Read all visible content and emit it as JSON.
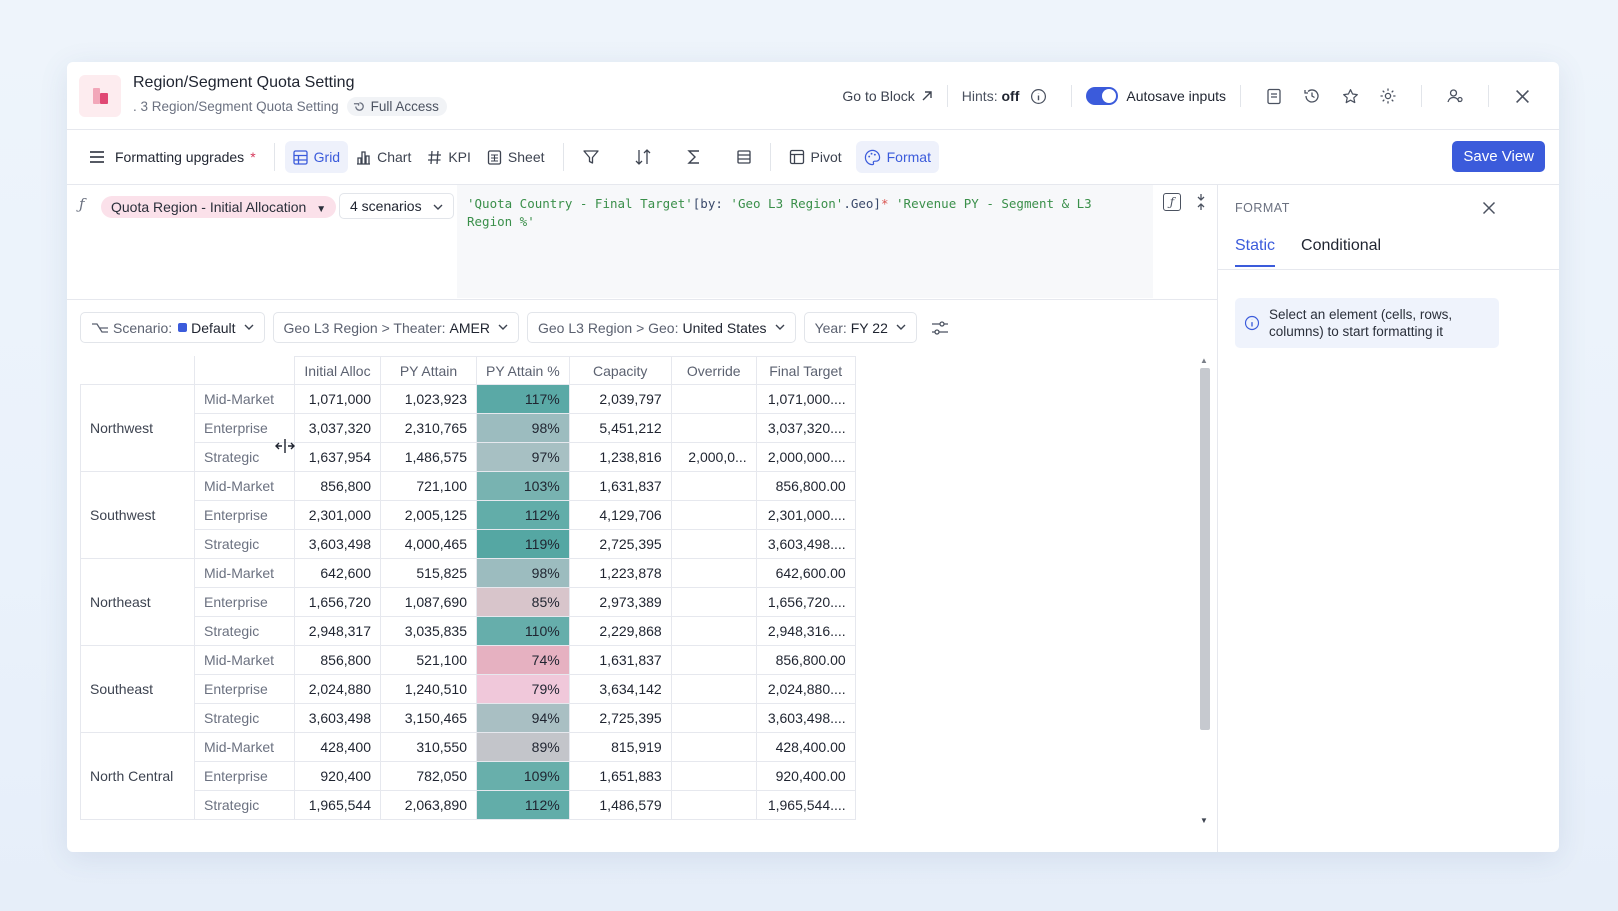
{
  "header": {
    "title": "Region/Segment Quota Setting",
    "subtitle": ". 3 Region/Segment Quota Setting",
    "access": "Full Access",
    "go_to_block": "Go to Block",
    "hints_label": "Hints:",
    "hints_value": "off",
    "autosave": "Autosave inputs"
  },
  "toolbar": {
    "view_name": "Formatting upgrades",
    "asterisk": "*",
    "tabs": [
      "Grid",
      "Chart",
      "KPI",
      "Sheet"
    ],
    "pivot": "Pivot",
    "format": "Format",
    "save": "Save View"
  },
  "formula": {
    "metric": "Quota Region - Initial Allocation",
    "scenarios": "4 scenarios",
    "p1": "'Quota Country - Final Target'",
    "p2": "[by: ",
    "p3": "'Geo L3 Region'",
    "p4": ".Geo]",
    "p5": "* ",
    "p6": "'Revenue PY - Segment & L3 Region %'"
  },
  "filters": {
    "scenario_label": "Scenario:",
    "scenario_value": "Default",
    "theater_label": "Geo L3 Region > Theater:",
    "theater_value": "AMER",
    "geo_label": "Geo L3 Region > Geo:",
    "geo_value": "United States",
    "year_label": "Year:",
    "year_value": "FY 22"
  },
  "grid": {
    "columns": [
      "Initial Alloc",
      "PY Attain",
      "PY Attain %",
      "Capacity",
      "Override",
      "Final Target"
    ],
    "regions": [
      {
        "name": "Northwest",
        "rows": [
          {
            "seg": "Mid-Market",
            "v": [
              "1,071,000",
              "1,023,923",
              "117%",
              "2,039,797",
              "",
              "1,071,000...."
            ],
            "color": "#5aa9a6"
          },
          {
            "seg": "Enterprise",
            "v": [
              "3,037,320",
              "2,310,765",
              "98%",
              "5,451,212",
              "",
              "3,037,320...."
            ],
            "color": "#9cbcbf"
          },
          {
            "seg": "Strategic",
            "v": [
              "1,637,954",
              "1,486,575",
              "97%",
              "1,238,816",
              "2,000,0...",
              "2,000,000...."
            ],
            "color": "#a7c0c3"
          }
        ]
      },
      {
        "name": "Southwest",
        "rows": [
          {
            "seg": "Mid-Market",
            "v": [
              "856,800",
              "721,100",
              "103%",
              "1,631,837",
              "",
              "856,800.00"
            ],
            "color": "#78b3b1"
          },
          {
            "seg": "Enterprise",
            "v": [
              "2,301,000",
              "2,005,125",
              "112%",
              "4,129,706",
              "",
              "2,301,000...."
            ],
            "color": "#62ada9"
          },
          {
            "seg": "Strategic",
            "v": [
              "3,603,498",
              "4,000,465",
              "119%",
              "2,725,395",
              "",
              "3,603,498...."
            ],
            "color": "#55a7a3"
          }
        ]
      },
      {
        "name": "Northeast",
        "rows": [
          {
            "seg": "Mid-Market",
            "v": [
              "642,600",
              "515,825",
              "98%",
              "1,223,878",
              "",
              "642,600.00"
            ],
            "color": "#9cbcbf"
          },
          {
            "seg": "Enterprise",
            "v": [
              "1,656,720",
              "1,087,690",
              "85%",
              "2,973,389",
              "",
              "1,656,720...."
            ],
            "color": "#d8c5cb"
          },
          {
            "seg": "Strategic",
            "v": [
              "2,948,317",
              "3,035,835",
              "110%",
              "2,229,868",
              "",
              "2,948,316...."
            ],
            "color": "#66aeab"
          }
        ]
      },
      {
        "name": "Southeast",
        "rows": [
          {
            "seg": "Mid-Market",
            "v": [
              "856,800",
              "521,100",
              "74%",
              "1,631,837",
              "",
              "856,800.00"
            ],
            "color": "#e6b1c1"
          },
          {
            "seg": "Enterprise",
            "v": [
              "2,024,880",
              "1,240,510",
              "79%",
              "3,634,142",
              "",
              "2,024,880...."
            ],
            "color": "#f0c8da"
          },
          {
            "seg": "Strategic",
            "v": [
              "3,603,498",
              "3,150,465",
              "94%",
              "2,725,395",
              "",
              "3,603,498...."
            ],
            "color": "#a9bfc3"
          }
        ]
      },
      {
        "name": "North Central",
        "rows": [
          {
            "seg": "Mid-Market",
            "v": [
              "428,400",
              "310,550",
              "89%",
              "815,919",
              "",
              "428,400.00"
            ],
            "color": "#c3c5ca"
          },
          {
            "seg": "Enterprise",
            "v": [
              "920,400",
              "782,050",
              "109%",
              "1,651,883",
              "",
              "920,400.00"
            ],
            "color": "#68afab"
          },
          {
            "seg": "Strategic",
            "v": [
              "1,965,544",
              "2,063,890",
              "112%",
              "1,486,579",
              "",
              "1,965,544...."
            ],
            "color": "#62ada9"
          }
        ]
      }
    ]
  },
  "panel": {
    "label": "FORMAT",
    "tab_static": "Static",
    "tab_conditional": "Conditional",
    "info": "Select an element (cells, rows, columns) to start formatting it"
  },
  "colors": {
    "accent": "#3b5bdb",
    "chip": "#fbe1ea"
  }
}
